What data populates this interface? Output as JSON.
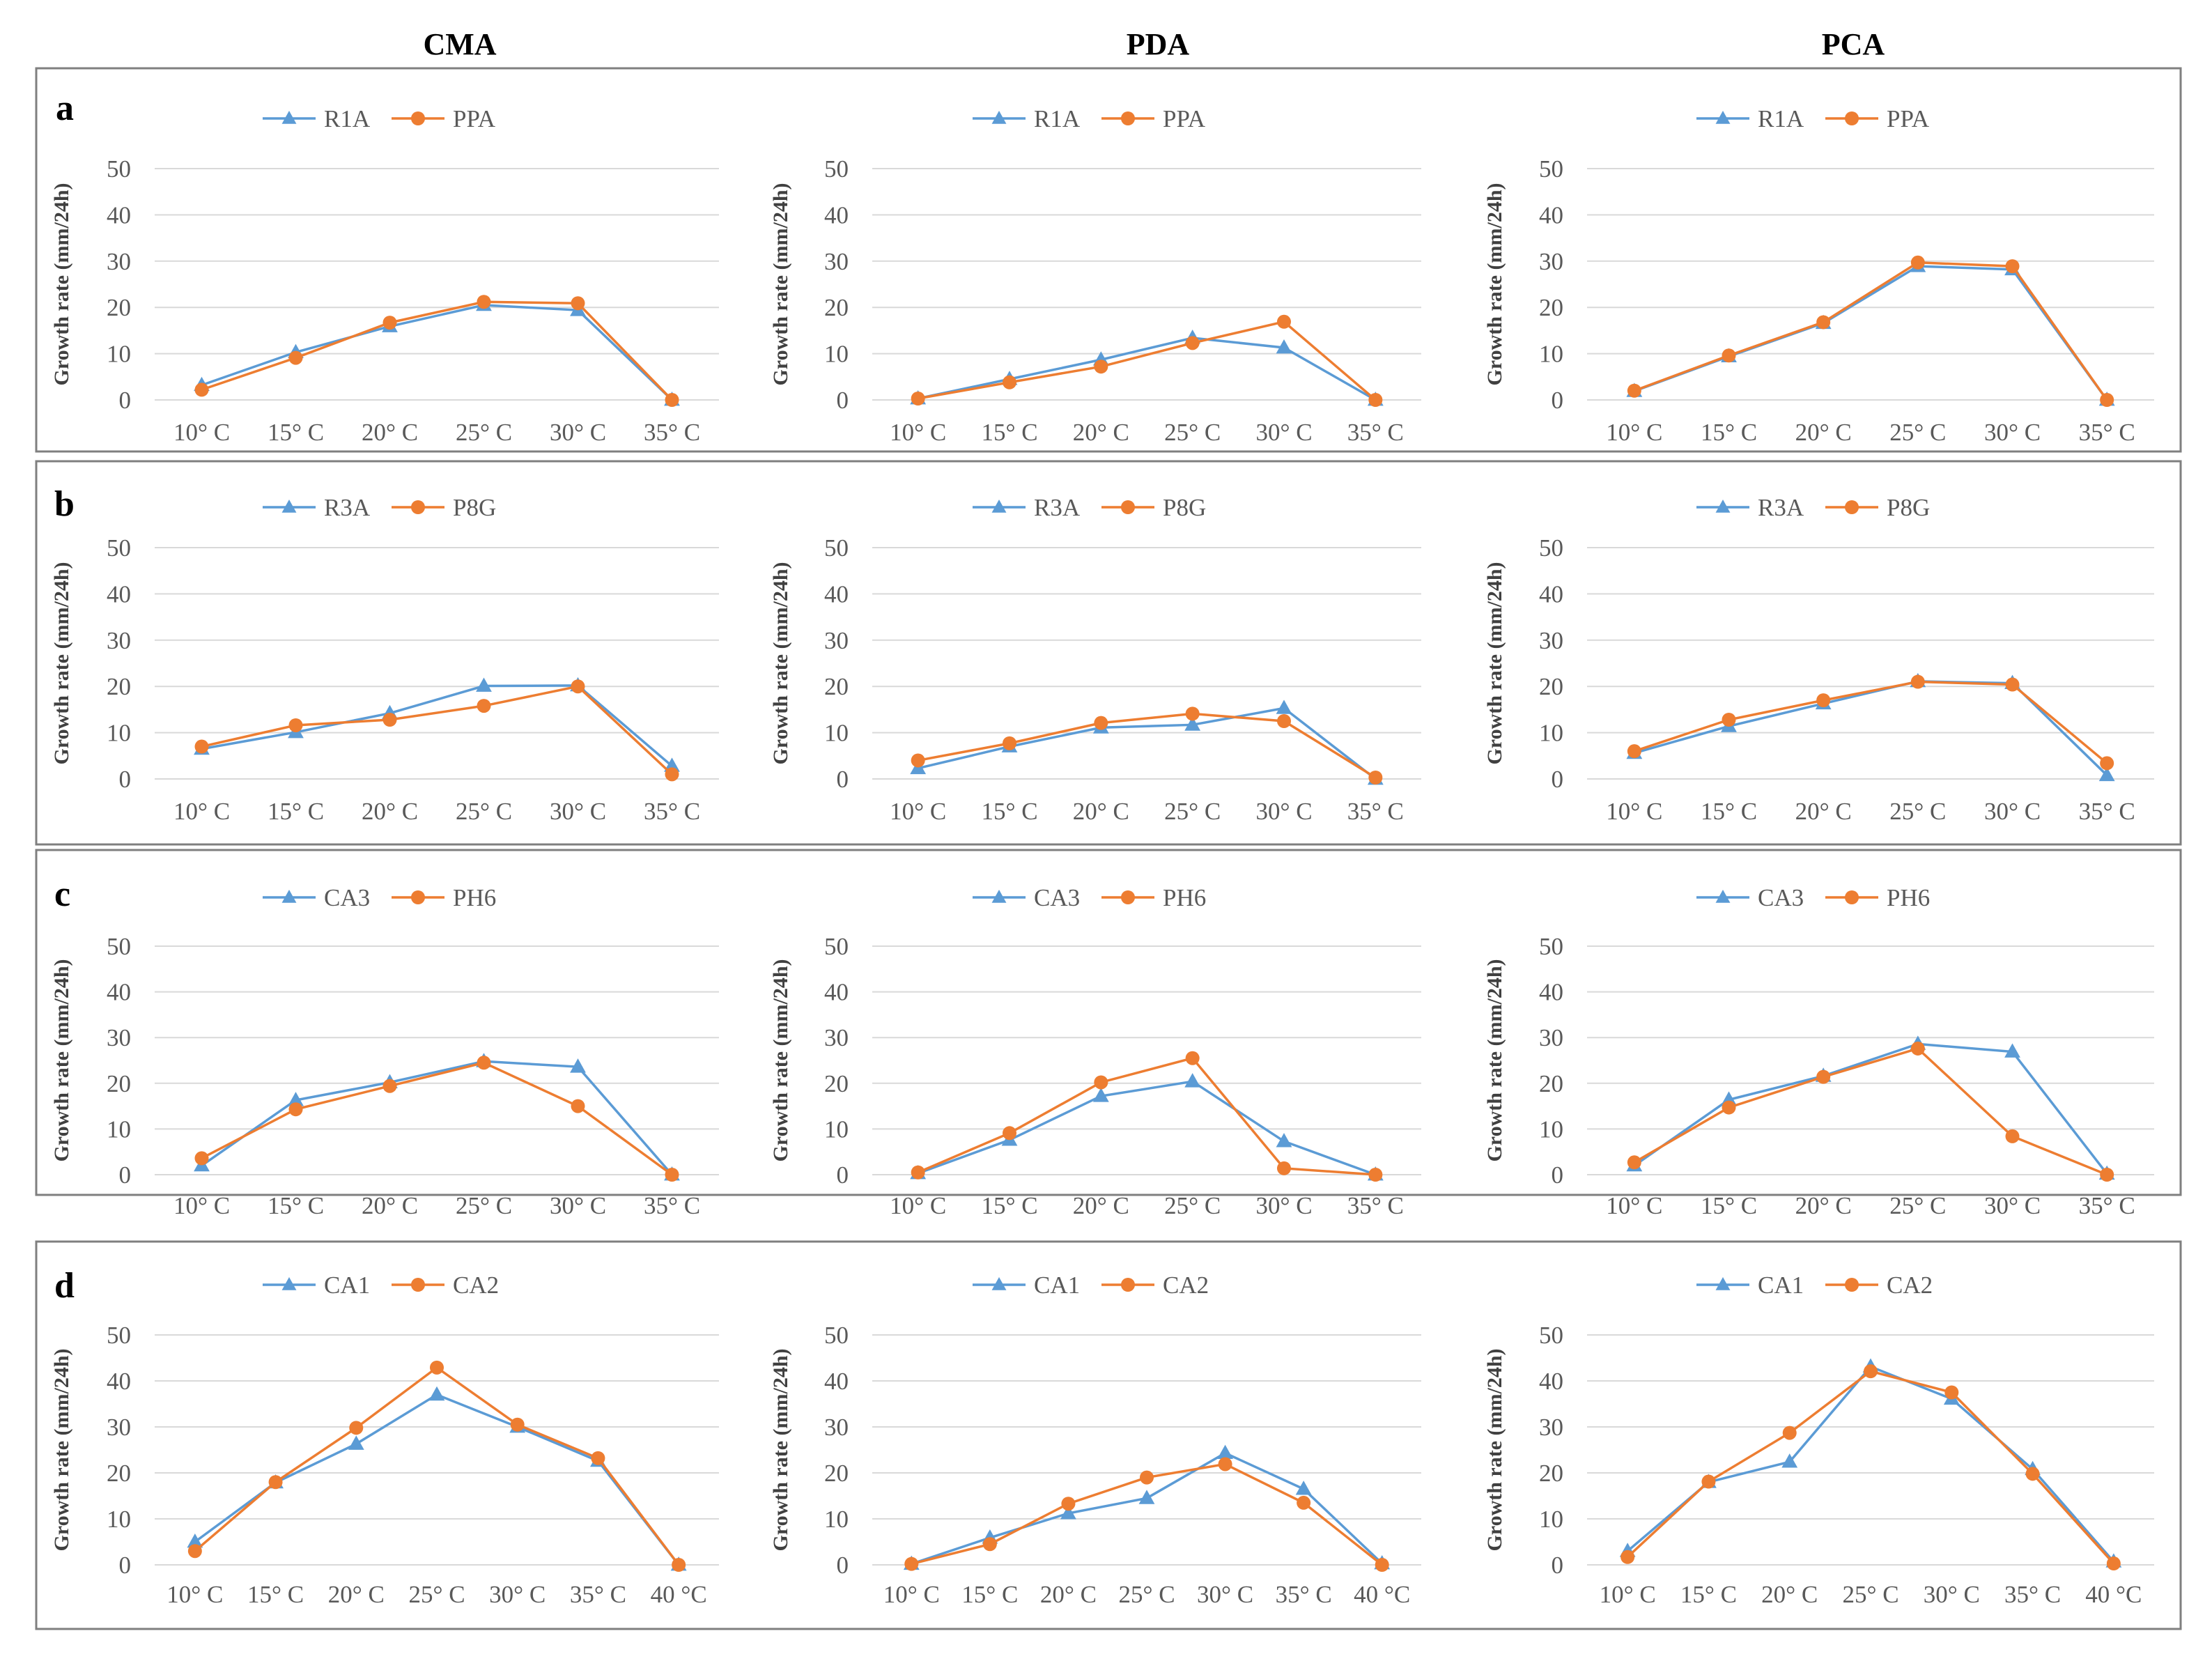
{
  "columns": [
    "CMA",
    "PDA",
    "PCA"
  ],
  "colors": {
    "series1": "#5b9bd5",
    "series2": "#ed7d31"
  },
  "markers": {
    "series1": "triangle",
    "series2": "circle"
  },
  "chart_data": [
    {
      "type": "line",
      "row": "a",
      "column": "CMA",
      "ylabel": "Growth rate (mm/24h)",
      "ylim": [
        0,
        50
      ],
      "yticks": [
        0,
        10,
        20,
        30,
        40,
        50
      ],
      "categories": [
        "10° C",
        "15° C",
        "20° C",
        "25° C",
        "30° C",
        "35° C"
      ],
      "series": [
        {
          "name": "R1A",
          "values": [
            3.2,
            10.3,
            15.9,
            20.5,
            19.4,
            0
          ]
        },
        {
          "name": "PPA",
          "values": [
            2.2,
            9.1,
            16.7,
            21.2,
            20.9,
            0
          ]
        }
      ],
      "legend": "top-center",
      "grid": true
    },
    {
      "type": "line",
      "row": "a",
      "column": "PDA",
      "ylabel": "Growth rate (mm/24h)",
      "ylim": [
        0,
        50
      ],
      "yticks": [
        0,
        10,
        20,
        30,
        40,
        50
      ],
      "categories": [
        "10° C",
        "15° C",
        "20° C",
        "25° C",
        "30° C",
        "35° C"
      ],
      "series": [
        {
          "name": "R1A",
          "values": [
            0.3,
            4.5,
            8.7,
            13.4,
            11.3,
            0
          ]
        },
        {
          "name": "PPA",
          "values": [
            0.3,
            3.8,
            7.2,
            12.3,
            16.9,
            0
          ]
        }
      ],
      "legend": "top-center",
      "grid": true
    },
    {
      "type": "line",
      "row": "a",
      "column": "PCA",
      "ylabel": "Growth rate (mm/24h)",
      "ylim": [
        0,
        50
      ],
      "yticks": [
        0,
        10,
        20,
        30,
        40,
        50
      ],
      "categories": [
        "10° C",
        "15° C",
        "20° C",
        "25° C",
        "30° C",
        "35° C"
      ],
      "series": [
        {
          "name": "R1A",
          "values": [
            1.9,
            9.4,
            16.6,
            28.9,
            28.2,
            0
          ]
        },
        {
          "name": "PPA",
          "values": [
            2.0,
            9.6,
            16.8,
            29.7,
            28.9,
            0
          ]
        }
      ],
      "legend": "top-center",
      "grid": true
    },
    {
      "type": "line",
      "row": "b",
      "column": "CMA",
      "ylabel": "Growth rate (mm/24h)",
      "ylim": [
        0,
        50
      ],
      "yticks": [
        0,
        10,
        20,
        30,
        40,
        50
      ],
      "categories": [
        "10° C",
        "15° C",
        "20° C",
        "25° C",
        "30° C",
        "35° C"
      ],
      "series": [
        {
          "name": "R3A",
          "values": [
            6.5,
            10.1,
            14.2,
            20.1,
            20.2,
            2.8
          ]
        },
        {
          "name": "P8G",
          "values": [
            7.0,
            11.6,
            12.8,
            15.8,
            20.0,
            1.0
          ]
        }
      ],
      "legend": "top-center",
      "grid": true
    },
    {
      "type": "line",
      "row": "b",
      "column": "PDA",
      "ylabel": "Growth rate (mm/24h)",
      "ylim": [
        0,
        50
      ],
      "yticks": [
        0,
        10,
        20,
        30,
        40,
        50
      ],
      "categories": [
        "10° C",
        "15° C",
        "20° C",
        "25° C",
        "30° C",
        "35° C"
      ],
      "series": [
        {
          "name": "R3A",
          "values": [
            2.3,
            7.0,
            11.1,
            11.7,
            15.3,
            0
          ]
        },
        {
          "name": "P8G",
          "values": [
            4.0,
            7.7,
            12.1,
            14.1,
            12.5,
            0.3
          ]
        }
      ],
      "legend": "top-center",
      "grid": true
    },
    {
      "type": "line",
      "row": "b",
      "column": "PCA",
      "ylabel": "Growth rate (mm/24h)",
      "ylim": [
        0,
        50
      ],
      "yticks": [
        0,
        10,
        20,
        30,
        40,
        50
      ],
      "categories": [
        "10° C",
        "15° C",
        "20° C",
        "25° C",
        "30° C",
        "35° C"
      ],
      "series": [
        {
          "name": "R3A",
          "values": [
            5.6,
            11.4,
            16.3,
            21.1,
            20.7,
            0.8
          ]
        },
        {
          "name": "P8G",
          "values": [
            6.0,
            12.8,
            17.0,
            21.0,
            20.4,
            3.4
          ]
        }
      ],
      "legend": "top-center",
      "grid": true
    },
    {
      "type": "line",
      "row": "c",
      "column": "CMA",
      "ylabel": "Growth rate (mm/24h)",
      "ylim": [
        0,
        50
      ],
      "yticks": [
        0,
        10,
        20,
        30,
        40,
        50
      ],
      "categories": [
        "10° C",
        "15° C",
        "20° C",
        "25° C",
        "30° C",
        "35° C"
      ],
      "series": [
        {
          "name": "CA3",
          "values": [
            2.0,
            16.3,
            20.2,
            24.8,
            23.6,
            0
          ]
        },
        {
          "name": "PH6",
          "values": [
            3.6,
            14.3,
            19.4,
            24.5,
            15.0,
            0
          ]
        }
      ],
      "legend": "top-center",
      "grid": true
    },
    {
      "type": "line",
      "row": "c",
      "column": "PDA",
      "ylabel": "Growth rate (mm/24h)",
      "ylim": [
        0,
        50
      ],
      "yticks": [
        0,
        10,
        20,
        30,
        40,
        50
      ],
      "categories": [
        "10° C",
        "15° C",
        "20° C",
        "25° C",
        "30° C",
        "35° C"
      ],
      "series": [
        {
          "name": "CA3",
          "values": [
            0.3,
            7.6,
            17.2,
            20.4,
            7.3,
            0
          ]
        },
        {
          "name": "PH6",
          "values": [
            0.5,
            9.1,
            20.2,
            25.5,
            1.4,
            0
          ]
        }
      ],
      "legend": "top-center",
      "grid": true
    },
    {
      "type": "line",
      "row": "c",
      "column": "PCA",
      "ylabel": "Growth rate (mm/24h)",
      "ylim": [
        0,
        50
      ],
      "yticks": [
        0,
        10,
        20,
        30,
        40,
        50
      ],
      "categories": [
        "10° C",
        "15° C",
        "20° C",
        "25° C",
        "30° C",
        "35° C"
      ],
      "series": [
        {
          "name": "CA3",
          "values": [
            2.0,
            16.4,
            21.6,
            28.6,
            26.9,
            0.2
          ]
        },
        {
          "name": "PH6",
          "values": [
            2.7,
            14.7,
            21.4,
            27.6,
            8.4,
            0
          ]
        }
      ],
      "legend": "top-center",
      "grid": true
    },
    {
      "type": "line",
      "row": "d",
      "column": "CMA",
      "ylabel": "Growth rate (mm/24h)",
      "ylim": [
        0,
        50
      ],
      "yticks": [
        0,
        10,
        20,
        30,
        40,
        50
      ],
      "categories": [
        "10° C",
        "15° C",
        "20° C",
        "25° C",
        "30° C",
        "35° C",
        "40 °C"
      ],
      "series": [
        {
          "name": "CA1",
          "values": [
            5.0,
            17.9,
            26.3,
            37.0,
            30.0,
            22.6,
            0
          ]
        },
        {
          "name": "CA2",
          "values": [
            3.0,
            18.0,
            29.8,
            42.9,
            30.5,
            23.2,
            0
          ]
        }
      ],
      "legend": "top-center",
      "grid": true
    },
    {
      "type": "line",
      "row": "d",
      "column": "PDA",
      "ylabel": "Growth rate (mm/24h)",
      "ylim": [
        0,
        50
      ],
      "yticks": [
        0,
        10,
        20,
        30,
        40,
        50
      ],
      "categories": [
        "10° C",
        "15° C",
        "20° C",
        "25° C",
        "30° C",
        "35° C",
        "40 °C"
      ],
      "series": [
        {
          "name": "CA1",
          "values": [
            0.2,
            5.9,
            11.2,
            14.5,
            24.3,
            16.5,
            0.3
          ]
        },
        {
          "name": "CA2",
          "values": [
            0.2,
            4.5,
            13.3,
            19.0,
            21.9,
            13.5,
            0
          ]
        }
      ],
      "legend": "top-center",
      "grid": true
    },
    {
      "type": "line",
      "row": "d",
      "column": "PCA",
      "ylabel": "Growth rate (mm/24h)",
      "ylim": [
        0,
        50
      ],
      "yticks": [
        0,
        10,
        20,
        30,
        40,
        50
      ],
      "categories": [
        "10° C",
        "15° C",
        "20° C",
        "25° C",
        "30° C",
        "35° C",
        "40 °C"
      ],
      "series": [
        {
          "name": "CA1",
          "values": [
            3.0,
            18.0,
            22.4,
            43.1,
            36.1,
            20.8,
            0.7
          ]
        },
        {
          "name": "CA2",
          "values": [
            1.7,
            18.1,
            28.7,
            42.1,
            37.5,
            19.8,
            0.3
          ]
        }
      ],
      "legend": "top-center",
      "grid": true
    }
  ]
}
